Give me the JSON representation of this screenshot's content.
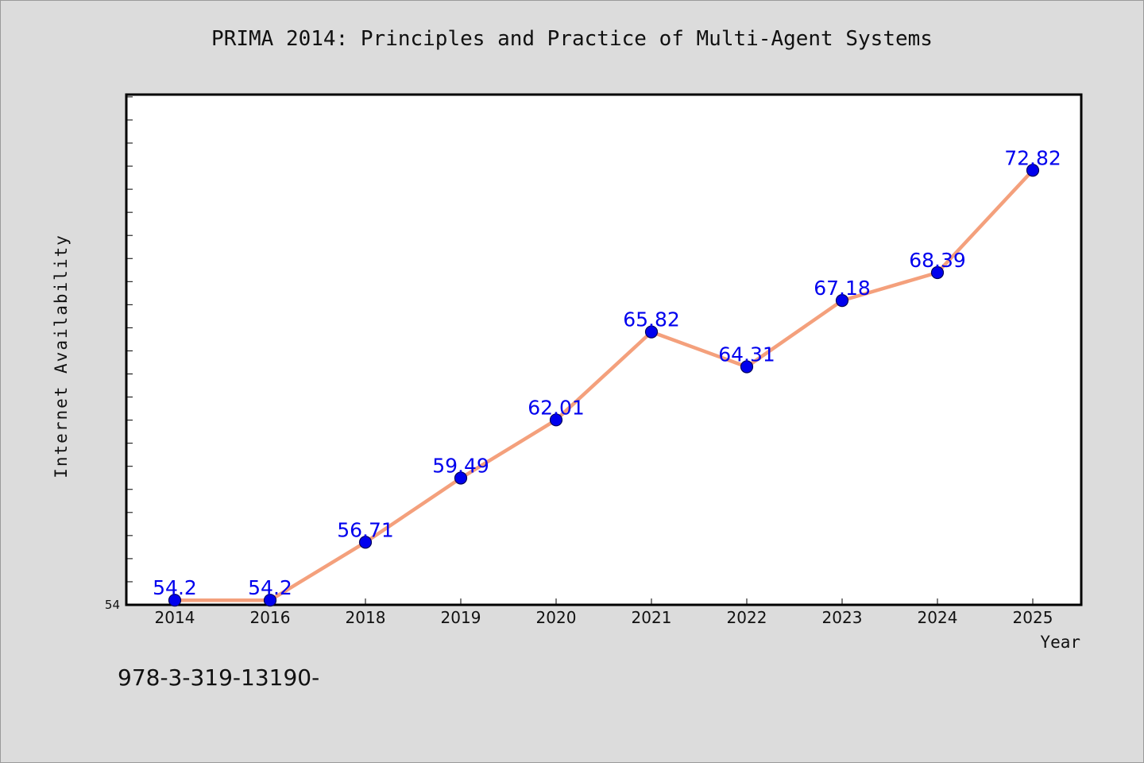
{
  "chart_data": {
    "type": "line",
    "title": "PRIMA 2014: Principles and Practice of Multi-Agent Systems",
    "xlabel": "Year",
    "ylabel": "Internet Availability",
    "footnote": "978-3-319-13190-",
    "categories": [
      "2014",
      "2016",
      "2018",
      "2019",
      "2020",
      "2021",
      "2022",
      "2023",
      "2024",
      "2025"
    ],
    "series": [
      {
        "values": [
          54.2,
          54.2,
          56.71,
          59.49,
          62.01,
          65.82,
          64.31,
          67.18,
          68.39,
          72.82
        ],
        "data_labels": [
          "54.2",
          "54.2",
          "56.71",
          "59.49",
          "62.01",
          "65.82",
          "64.31",
          "67.18",
          "68.39",
          "72.82"
        ]
      }
    ],
    "ylim": [
      54,
      76.1
    ],
    "yticks_labeled": [
      "54"
    ],
    "y_minor_tick_step": 1,
    "grid": false,
    "legend": "none",
    "colors": {
      "line": "#f4a07c",
      "marker_fill": "#0000ee",
      "marker_edge": "#00005a",
      "data_label": "#0000ee",
      "plot_background": "#ffffff",
      "figure_background": "#dcdcdc"
    }
  }
}
